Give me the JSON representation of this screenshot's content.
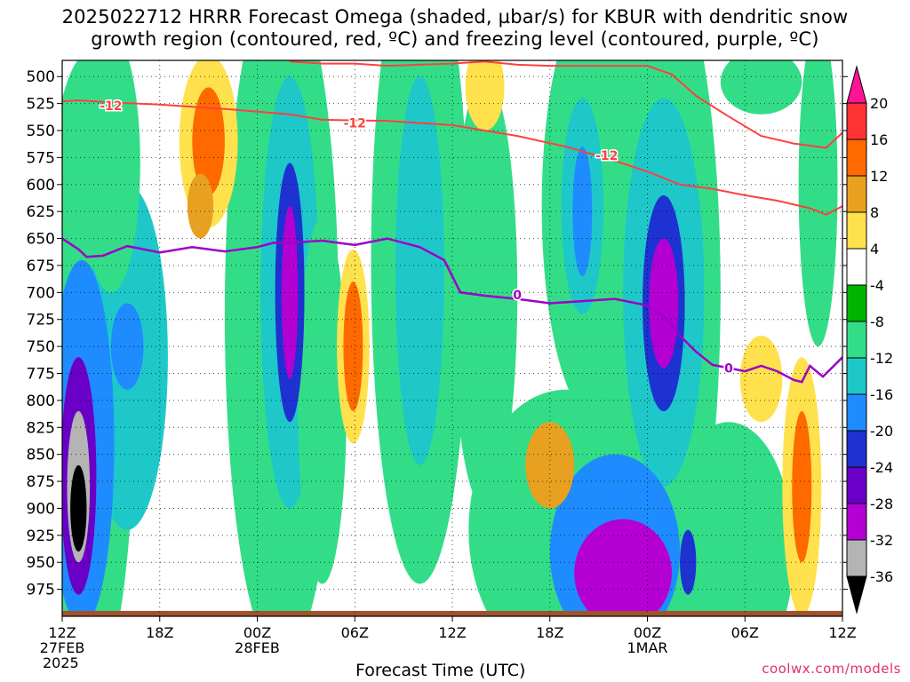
{
  "title_line1": "2025022712 HRRR Forecast Omega (shaded, µbar/s) for KBUR with dendritic snow",
  "title_line2": "growth region (contoured, red, ºC) and freezing level (contoured, purple, ºC)",
  "credit": "coolwx.com/models",
  "chart_data": {
    "type": "heatmap",
    "xlabel": "Forecast Time (UTC)",
    "ylabel": "",
    "x_unit": "hours from 2025-02-27 12Z",
    "xlim": [
      0,
      48
    ],
    "ylim": [
      1000,
      485
    ],
    "y_ticks": [
      500,
      525,
      550,
      575,
      600,
      625,
      650,
      675,
      700,
      725,
      750,
      775,
      800,
      825,
      850,
      875,
      900,
      925,
      950,
      975
    ],
    "x_ticks": [
      {
        "x": 0,
        "label": "12Z",
        "sub1": "27FEB",
        "sub2": "2025"
      },
      {
        "x": 6,
        "label": "18Z",
        "sub1": "",
        "sub2": ""
      },
      {
        "x": 12,
        "label": "00Z",
        "sub1": "28FEB",
        "sub2": ""
      },
      {
        "x": 18,
        "label": "06Z",
        "sub1": "",
        "sub2": ""
      },
      {
        "x": 24,
        "label": "12Z",
        "sub1": "",
        "sub2": ""
      },
      {
        "x": 30,
        "label": "18Z",
        "sub1": "",
        "sub2": ""
      },
      {
        "x": 36,
        "label": "00Z",
        "sub1": "1MAR",
        "sub2": ""
      },
      {
        "x": 42,
        "label": "06Z",
        "sub1": "",
        "sub2": ""
      },
      {
        "x": 48,
        "label": "12Z",
        "sub1": "",
        "sub2": ""
      }
    ],
    "colorbar": {
      "labels": [
        "20",
        "16",
        "12",
        "8",
        "4",
        "-4",
        "-8",
        "-12",
        "-16",
        "-20",
        "-24",
        "-28",
        "-32",
        "-36"
      ],
      "colors": [
        "#ff1493",
        "#ff3333",
        "#ff6a00",
        "#e8a020",
        "#ffe14d",
        "#ffffff",
        "#00b400",
        "#33dd88",
        "#1ec8c8",
        "#1e8cff",
        "#1e32d2",
        "#6a00c8",
        "#b400d2",
        "#b4b4b4",
        "#000000"
      ]
    },
    "omega_cells": [
      {
        "t": 1.0,
        "p": 900,
        "rt": 0.5,
        "rp": 40,
        "v": -36
      },
      {
        "t": 1.0,
        "p": 880,
        "rt": 0.7,
        "rp": 70,
        "v": -32
      },
      {
        "t": 1.0,
        "p": 870,
        "rt": 1.1,
        "rp": 110,
        "v": -24
      },
      {
        "t": 1.2,
        "p": 840,
        "rt": 2.0,
        "rp": 170,
        "v": -16
      },
      {
        "t": 1.5,
        "p": 780,
        "rt": 3.0,
        "rp": 300,
        "v": -8
      },
      {
        "t": 4.0,
        "p": 750,
        "rt": 1.0,
        "rp": 40,
        "v": -16
      },
      {
        "t": 4.0,
        "p": 760,
        "rt": 2.5,
        "rp": 160,
        "v": -12
      },
      {
        "t": 3.0,
        "p": 580,
        "rt": 1.8,
        "rp": 120,
        "v": -8
      },
      {
        "t": 9.0,
        "p": 560,
        "rt": 1.8,
        "rp": 80,
        "v": 4
      },
      {
        "t": 9.0,
        "p": 560,
        "rt": 1.0,
        "rp": 50,
        "v": 12
      },
      {
        "t": 8.5,
        "p": 620,
        "rt": 0.8,
        "rp": 30,
        "v": 8
      },
      {
        "t": 14.0,
        "p": 700,
        "rt": 0.5,
        "rp": 80,
        "v": -28
      },
      {
        "t": 14.0,
        "p": 700,
        "rt": 0.9,
        "rp": 120,
        "v": -20
      },
      {
        "t": 14.0,
        "p": 700,
        "rt": 1.8,
        "rp": 200,
        "v": -12
      },
      {
        "t": 13.5,
        "p": 720,
        "rt": 3.5,
        "rp": 320,
        "v": -8
      },
      {
        "t": 17.9,
        "p": 750,
        "rt": 0.6,
        "rp": 60,
        "v": 12
      },
      {
        "t": 17.9,
        "p": 750,
        "rt": 1.0,
        "rp": 90,
        "v": 4
      },
      {
        "t": 16.0,
        "p": 800,
        "rt": 1.5,
        "rp": 170,
        "v": -8
      },
      {
        "t": 22.0,
        "p": 670,
        "rt": 3.0,
        "rp": 300,
        "v": -8
      },
      {
        "t": 22.0,
        "p": 680,
        "rt": 1.5,
        "rp": 180,
        "v": -12
      },
      {
        "t": 26.0,
        "p": 700,
        "rt": 2.0,
        "rp": 200,
        "v": -8
      },
      {
        "t": 33.0,
        "p": 620,
        "rt": 3.5,
        "rp": 200,
        "v": -8
      },
      {
        "t": 32.0,
        "p": 620,
        "rt": 1.3,
        "rp": 100,
        "v": -12
      },
      {
        "t": 32.0,
        "p": 625,
        "rt": 0.6,
        "rp": 60,
        "v": -16
      },
      {
        "t": 37.0,
        "p": 710,
        "rt": 0.9,
        "rp": 60,
        "v": -28
      },
      {
        "t": 37.0,
        "p": 710,
        "rt": 1.3,
        "rp": 100,
        "v": -20
      },
      {
        "t": 37.0,
        "p": 700,
        "rt": 2.5,
        "rp": 180,
        "v": -12
      },
      {
        "t": 36.5,
        "p": 700,
        "rt": 4.0,
        "rp": 320,
        "v": -8
      },
      {
        "t": 34.5,
        "p": 960,
        "rt": 3.0,
        "rp": 50,
        "v": -28
      },
      {
        "t": 34.0,
        "p": 940,
        "rt": 4.0,
        "rp": 90,
        "v": -16
      },
      {
        "t": 31.0,
        "p": 920,
        "rt": 6.0,
        "rp": 130,
        "v": -8
      },
      {
        "t": 41.0,
        "p": 940,
        "rt": 4.0,
        "rp": 120,
        "v": -8
      },
      {
        "t": 38.5,
        "p": 950,
        "rt": 0.5,
        "rp": 30,
        "v": -20
      },
      {
        "t": 45.5,
        "p": 880,
        "rt": 1.2,
        "rp": 120,
        "v": 4
      },
      {
        "t": 45.5,
        "p": 880,
        "rt": 0.6,
        "rp": 70,
        "v": 12
      },
      {
        "t": 46.5,
        "p": 600,
        "rt": 1.2,
        "rp": 150,
        "v": -8
      },
      {
        "t": 30.0,
        "p": 860,
        "rt": 1.5,
        "rp": 40,
        "v": 8
      },
      {
        "t": 43.0,
        "p": 780,
        "rt": 1.3,
        "rp": 40,
        "v": 4
      },
      {
        "t": 26.0,
        "p": 510,
        "rt": 1.2,
        "rp": 40,
        "v": 4
      },
      {
        "t": 43.0,
        "p": 505,
        "rt": 2.5,
        "rp": 30,
        "v": -8
      }
    ],
    "red_contours": [
      {
        "name": "-12",
        "x": [
          0,
          1,
          3,
          6,
          10,
          14,
          16,
          20,
          24,
          28,
          31,
          34,
          36,
          38,
          40,
          42,
          44,
          46,
          47,
          48
        ],
        "y": [
          523,
          522,
          524,
          526,
          530,
          535,
          540,
          541,
          545,
          555,
          565,
          578,
          588,
          600,
          604,
          610,
          615,
          622,
          628,
          620
        ]
      },
      {
        "name": "-12b",
        "x": [
          14,
          16,
          18,
          20,
          22,
          24,
          26,
          28,
          30,
          32,
          34,
          36,
          37.5,
          39,
          41,
          43,
          45,
          46,
          47,
          48
        ],
        "y": [
          486,
          488,
          488,
          490,
          489,
          488,
          486,
          489,
          490,
          490,
          490,
          490,
          498,
          518,
          537,
          555,
          562,
          564,
          566,
          552
        ]
      }
    ],
    "purple_contour": {
      "name": "0",
      "x": [
        0,
        1,
        1.5,
        2.5,
        4,
        6,
        8,
        10,
        12,
        13,
        14,
        16,
        18,
        20,
        22,
        23.5,
        24.5,
        26,
        28,
        30,
        32,
        34,
        36,
        37,
        38,
        39,
        40,
        41,
        42,
        43,
        44,
        45,
        45.5,
        46,
        46.8,
        48
      ],
      "y": [
        650,
        660,
        667,
        666,
        657,
        663,
        658,
        662,
        658,
        654,
        654,
        652,
        656,
        650,
        658,
        670,
        700,
        703,
        706,
        710,
        708,
        706,
        712,
        722,
        740,
        755,
        767,
        770,
        773,
        768,
        773,
        781,
        783,
        768,
        778,
        760
      ]
    },
    "contour_labels": [
      {
        "x": 3.0,
        "y": 527,
        "text": "-12",
        "color": "#ff4040"
      },
      {
        "x": 18.0,
        "y": 543,
        "text": "-12",
        "color": "#ff4040"
      },
      {
        "x": 33.5,
        "y": 573,
        "text": "-12",
        "color": "#ff4040"
      },
      {
        "x": 28.0,
        "y": 702,
        "text": "0",
        "color": "#9d00c8"
      },
      {
        "x": 41.0,
        "y": 770,
        "text": "0",
        "color": "#9d00c8"
      }
    ]
  }
}
